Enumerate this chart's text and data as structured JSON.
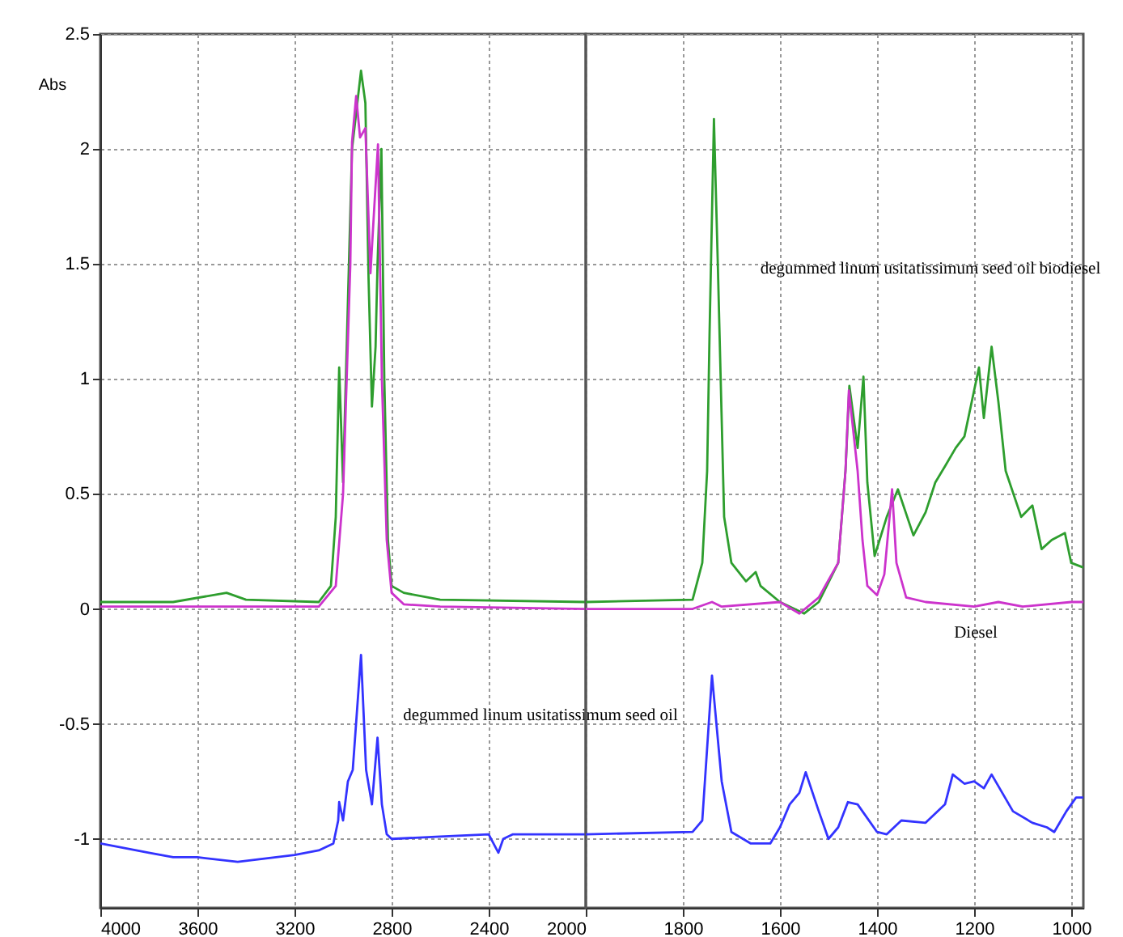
{
  "chart_data": [
    {
      "type": "line",
      "ylabel": "Abs",
      "xlim": [
        4000,
        2000
      ],
      "ylim": [
        -1.3,
        2.5
      ],
      "xticks": [
        4000,
        3600,
        3200,
        2800,
        2400,
        2000
      ],
      "yticks": [
        -1,
        -0.5,
        0,
        0.5,
        1,
        1.5,
        2,
        2.5
      ],
      "grid": true,
      "series": [
        {
          "color": "#2e9e2e",
          "x": [
            4000,
            3700,
            3480,
            3400,
            3100,
            3050,
            3030,
            3016,
            3000,
            2963,
            2926,
            2908,
            2895,
            2881,
            2866,
            2858,
            2842,
            2830,
            2815,
            2800,
            2750,
            2600,
            2000
          ],
          "values": [
            0.03,
            0.03,
            0.07,
            0.04,
            0.03,
            0.1,
            0.4,
            1.05,
            0.55,
            2.0,
            2.34,
            2.2,
            1.44,
            0.88,
            1.14,
            1.5,
            2.0,
            1.0,
            0.3,
            0.1,
            0.07,
            0.04,
            0.03
          ]
        },
        {
          "color": "#cc33cc",
          "x": [
            4000,
            3100,
            3030,
            3000,
            2970,
            2963,
            2946,
            2930,
            2908,
            2887,
            2875,
            2856,
            2840,
            2820,
            2800,
            2750,
            2600,
            2000
          ],
          "values": [
            0.01,
            0.01,
            0.1,
            0.5,
            1.5,
            2.03,
            2.23,
            2.05,
            2.09,
            1.46,
            1.68,
            2.02,
            1.0,
            0.3,
            0.07,
            0.02,
            0.01,
            0.0
          ]
        },
        {
          "name": "degummed linum usitatissimum seed oil",
          "color": "#3333ff",
          "x": [
            4000,
            3800,
            3700,
            3600,
            3434,
            3200,
            3100,
            3040,
            3020,
            3016,
            3000,
            2980,
            2960,
            2926,
            2905,
            2881,
            2858,
            2840,
            2820,
            2800,
            2600,
            2400,
            2360,
            2340,
            2300,
            2000
          ],
          "values": [
            -1.02,
            -1.06,
            -1.08,
            -1.08,
            -1.1,
            -1.07,
            -1.05,
            -1.02,
            -0.92,
            -0.84,
            -0.92,
            -0.75,
            -0.7,
            -0.2,
            -0.7,
            -0.85,
            -0.56,
            -0.85,
            -0.98,
            -1.0,
            -0.99,
            -0.98,
            -1.06,
            -1.0,
            -0.98,
            -0.98
          ]
        }
      ]
    },
    {
      "type": "line",
      "xlim": [
        2000,
        975
      ],
      "ylim": [
        -1.3,
        2.5
      ],
      "xticks": [
        1800,
        1600,
        1400,
        1200,
        1000
      ],
      "yticks": [
        -1,
        -0.5,
        0,
        0.5,
        1,
        1.5,
        2,
        2.5
      ],
      "grid": true,
      "tick_labels": "x",
      "series": [
        {
          "name": "degummed linum usitatissimum seed oil biodiesel",
          "color": "#2e9e2e",
          "x": [
            2000,
            1780,
            1760,
            1750,
            1745,
            1736,
            1728,
            1715,
            1700,
            1670,
            1650,
            1640,
            1600,
            1550,
            1520,
            1480,
            1465,
            1457,
            1440,
            1428,
            1420,
            1405,
            1380,
            1357,
            1325,
            1300,
            1280,
            1260,
            1238,
            1220,
            1190,
            1180,
            1164,
            1150,
            1135,
            1103,
            1080,
            1061,
            1040,
            1013,
            1000,
            975
          ],
          "values": [
            0.03,
            0.04,
            0.2,
            0.6,
            1.2,
            2.13,
            1.5,
            0.4,
            0.2,
            0.12,
            0.16,
            0.1,
            0.03,
            -0.02,
            0.03,
            0.2,
            0.6,
            0.97,
            0.7,
            1.01,
            0.55,
            0.23,
            0.4,
            0.52,
            0.32,
            0.42,
            0.55,
            0.62,
            0.7,
            0.75,
            1.05,
            0.83,
            1.14,
            0.9,
            0.6,
            0.4,
            0.45,
            0.26,
            0.3,
            0.33,
            0.2,
            0.18
          ]
        },
        {
          "name": "Diesel",
          "color": "#cc33cc",
          "x": [
            2000,
            1780,
            1740,
            1720,
            1600,
            1560,
            1520,
            1480,
            1465,
            1458,
            1440,
            1430,
            1420,
            1400,
            1385,
            1369,
            1360,
            1340,
            1300,
            1200,
            1150,
            1100,
            1000,
            975
          ],
          "values": [
            0.0,
            0.0,
            0.03,
            0.01,
            0.03,
            -0.02,
            0.05,
            0.2,
            0.6,
            0.95,
            0.6,
            0.3,
            0.1,
            0.06,
            0.15,
            0.52,
            0.2,
            0.05,
            0.03,
            0.01,
            0.03,
            0.01,
            0.03,
            0.03
          ]
        },
        {
          "color": "#3333ff",
          "x": [
            2000,
            1780,
            1760,
            1740,
            1720,
            1700,
            1660,
            1620,
            1600,
            1580,
            1560,
            1547,
            1520,
            1500,
            1480,
            1460,
            1440,
            1400,
            1380,
            1350,
            1300,
            1260,
            1244,
            1220,
            1200,
            1180,
            1164,
            1120,
            1080,
            1050,
            1035,
            1010,
            990,
            975
          ],
          "values": [
            -0.98,
            -0.97,
            -0.92,
            -0.29,
            -0.75,
            -0.97,
            -1.02,
            -1.02,
            -0.95,
            -0.85,
            -0.8,
            -0.71,
            -0.88,
            -1.0,
            -0.95,
            -0.84,
            -0.85,
            -0.97,
            -0.98,
            -0.92,
            -0.93,
            -0.85,
            -0.72,
            -0.76,
            -0.75,
            -0.78,
            -0.72,
            -0.88,
            -0.93,
            -0.95,
            -0.97,
            -0.88,
            -0.82,
            -0.82
          ]
        }
      ]
    }
  ]
}
